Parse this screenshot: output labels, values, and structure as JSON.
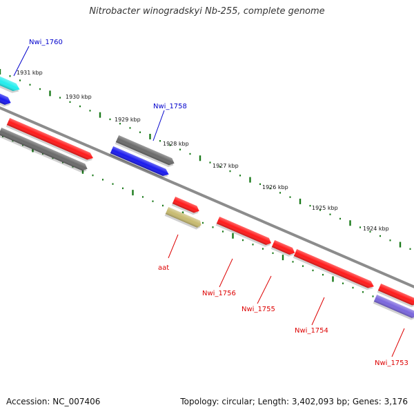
{
  "title": "Nitrobacter winogradskyi Nb-255, complete genome",
  "footer": {
    "accession": "Accession: NC_007406",
    "stats": "Topology: circular; Length: 3,402,093 bp; Genes: 3,176"
  },
  "colors": {
    "backbone": "#8c8c8c",
    "tick": "#1a7a1a",
    "gene_red": "#ff1a1a",
    "gene_blue": "#1a1aee",
    "gene_gray": "#6a6a6a",
    "gene_cyan": "#22eeee",
    "gene_khaki": "#c8bb70",
    "gene_purple": "#7a66dd",
    "label_blue": "#0000cc",
    "label_red": "#dd0000"
  },
  "scale_labels": [
    "1931 kbp",
    "1930 kbp",
    "1929 kbp",
    "1928 kbp",
    "1927 kbp",
    "1926 kbp",
    "1925 kbp",
    "1924 kbp"
  ],
  "genes": [
    {
      "label": "Nwi_1760",
      "color": "gene_cyan",
      "label_color": "label_blue"
    },
    {
      "label": "",
      "color": "gene_blue",
      "label_color": ""
    },
    {
      "label": "",
      "color": "gene_red",
      "label_color": ""
    },
    {
      "label": "",
      "color": "gene_gray",
      "label_color": ""
    },
    {
      "label": "",
      "color": "gene_gray",
      "label_color": ""
    },
    {
      "label": "Nwi_1758",
      "color": "gene_blue",
      "label_color": "label_blue"
    },
    {
      "label": "",
      "color": "gene_red",
      "label_color": ""
    },
    {
      "label": "aat",
      "color": "gene_khaki",
      "label_color": "label_red"
    },
    {
      "label": "Nwi_1756",
      "color": "gene_red",
      "label_color": "label_red"
    },
    {
      "label": "Nwi_1755",
      "color": "gene_red",
      "label_color": "label_red"
    },
    {
      "label": "Nwi_1754",
      "color": "gene_red",
      "label_color": "label_red"
    },
    {
      "label": "Nwi_1753",
      "color": "gene_red",
      "label_color": "label_red"
    },
    {
      "label": "",
      "color": "gene_purple",
      "label_color": ""
    }
  ]
}
